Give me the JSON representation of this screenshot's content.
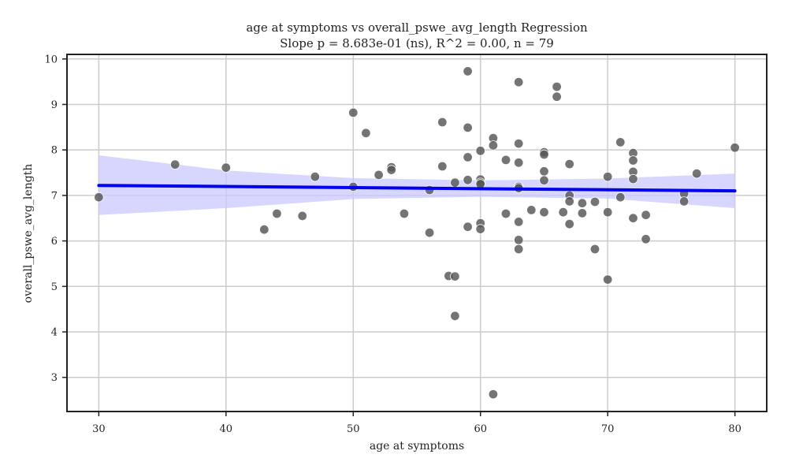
{
  "chart_data": {
    "type": "scatter",
    "title": "age at symptoms vs overall_pswe_avg_length Regression",
    "subtitle": "Slope p = 8.683e-01 (ns), R^2 = 0.00, n = 79",
    "xlabel": "age at symptoms",
    "ylabel": "overall_pswe_avg_length",
    "xlim": [
      27.5,
      82.5
    ],
    "ylim": [
      2.25,
      10.1
    ],
    "xticks": [
      30,
      40,
      50,
      60,
      70,
      80
    ],
    "yticks": [
      3,
      4,
      5,
      6,
      7,
      8,
      9,
      10
    ],
    "grid": true,
    "colors": {
      "points": "#555555",
      "regression_line": "#0000ee",
      "confidence_band": "#c8c8ff"
    },
    "points": [
      [
        30,
        6.96
      ],
      [
        36,
        7.68
      ],
      [
        40,
        7.61
      ],
      [
        43,
        6.25
      ],
      [
        44,
        6.6
      ],
      [
        46,
        6.55
      ],
      [
        47,
        7.41
      ],
      [
        50,
        8.82
      ],
      [
        50,
        7.19
      ],
      [
        51,
        8.37
      ],
      [
        52,
        7.45
      ],
      [
        53,
        7.62
      ],
      [
        53,
        7.56
      ],
      [
        54,
        6.6
      ],
      [
        56,
        7.12
      ],
      [
        56,
        6.18
      ],
      [
        57,
        8.61
      ],
      [
        57,
        7.64
      ],
      [
        57.5,
        5.23
      ],
      [
        58,
        5.22
      ],
      [
        58,
        4.35
      ],
      [
        58,
        7.28
      ],
      [
        59,
        9.73
      ],
      [
        59,
        8.49
      ],
      [
        59,
        7.84
      ],
      [
        59,
        7.34
      ],
      [
        59,
        6.31
      ],
      [
        60,
        7.98
      ],
      [
        60,
        7.35
      ],
      [
        60,
        7.28
      ],
      [
        60,
        7.25
      ],
      [
        60,
        6.39
      ],
      [
        60,
        6.26
      ],
      [
        61,
        8.26
      ],
      [
        61,
        8.1
      ],
      [
        61,
        2.63
      ],
      [
        62,
        7.78
      ],
      [
        62,
        6.6
      ],
      [
        63,
        9.49
      ],
      [
        63,
        8.14
      ],
      [
        63,
        7.72
      ],
      [
        63,
        7.19
      ],
      [
        63,
        7.16
      ],
      [
        63,
        6.42
      ],
      [
        63,
        6.02
      ],
      [
        63,
        5.82
      ],
      [
        64,
        6.68
      ],
      [
        65,
        7.95
      ],
      [
        65,
        7.9
      ],
      [
        65,
        7.53
      ],
      [
        65,
        7.33
      ],
      [
        65,
        6.63
      ],
      [
        66,
        9.39
      ],
      [
        66,
        9.17
      ],
      [
        66.5,
        6.63
      ],
      [
        67,
        7.69
      ],
      [
        67,
        7.0
      ],
      [
        67,
        6.87
      ],
      [
        67,
        6.37
      ],
      [
        68,
        6.83
      ],
      [
        68,
        6.61
      ],
      [
        69,
        6.86
      ],
      [
        69,
        5.82
      ],
      [
        70,
        7.41
      ],
      [
        70,
        6.63
      ],
      [
        70,
        5.15
      ],
      [
        71,
        8.17
      ],
      [
        71,
        6.96
      ],
      [
        72,
        7.93
      ],
      [
        72,
        7.77
      ],
      [
        72,
        7.52
      ],
      [
        72,
        7.36
      ],
      [
        72,
        6.5
      ],
      [
        73,
        6.57
      ],
      [
        73,
        6.04
      ],
      [
        76,
        7.04
      ],
      [
        76,
        6.87
      ],
      [
        77,
        7.48
      ],
      [
        80,
        8.05
      ]
    ],
    "regression": {
      "x": [
        30,
        80
      ],
      "y": [
        7.22,
        7.1
      ]
    },
    "confidence_band": {
      "x": [
        30,
        40,
        50,
        60,
        70,
        80
      ],
      "upper": [
        7.88,
        7.55,
        7.38,
        7.33,
        7.37,
        7.48
      ],
      "lower": [
        6.57,
        6.72,
        6.92,
        6.97,
        6.93,
        6.72
      ]
    }
  }
}
